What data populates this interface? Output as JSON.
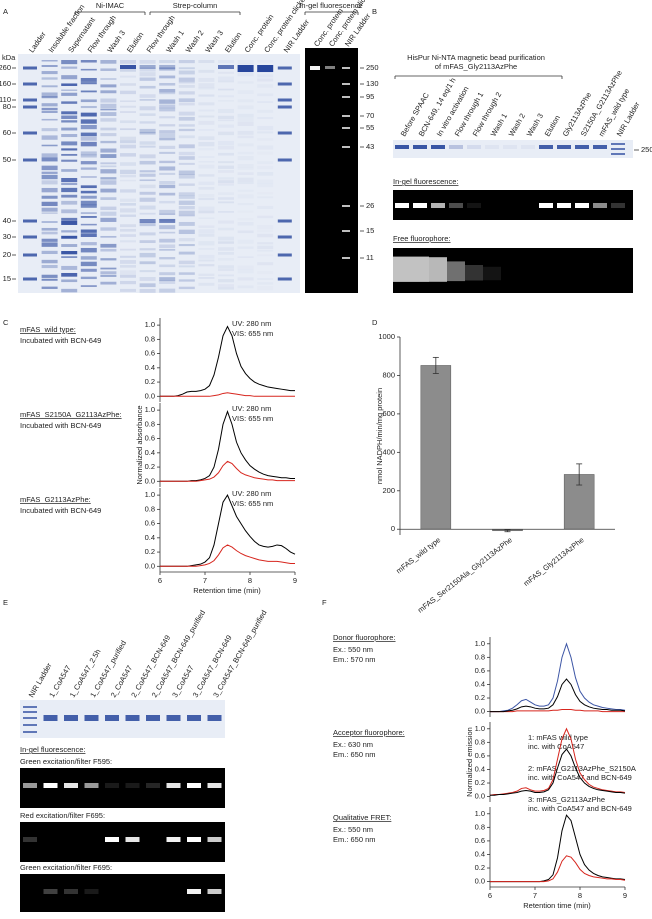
{
  "panel_labels": [
    "A",
    "B",
    "C",
    "D",
    "E",
    "F"
  ],
  "gel_a": {
    "kda_label": "kDa",
    "groups": [
      "Ni-IMAC",
      "Strep-column",
      "In-gel fluorescence"
    ],
    "lanes": [
      "Ladder",
      "Insoluble fraction",
      "Supernatant",
      "Flow through",
      "Wash 3",
      "Elution",
      "Flow through",
      "Wash 1",
      "Wash 2",
      "Wash 3",
      "Elution",
      "Conc. protein",
      "Conc. protein clicked",
      "NIR Ladder"
    ],
    "markers": [
      260,
      160,
      110,
      80,
      60,
      50,
      40,
      30,
      20,
      15
    ],
    "fluor_lanes": [
      "Conc. protein",
      "Conc. protein clicked",
      "NIR Ladder"
    ],
    "fluor_markers": [
      250,
      130,
      95,
      70,
      55,
      43,
      26,
      15,
      11
    ]
  },
  "gel_b": {
    "title_lines": [
      "HisPur Ni-NTA magnetic bead purification",
      "of mFAS_Gly2113AzPhe"
    ],
    "lanes": [
      "Before SPAAC",
      "BCN-649, 14 eq/1 h",
      "In vitro activation",
      "Flow through 1",
      "Flow through 2",
      "Wash 1",
      "Wash 2",
      "Wash 3",
      "Elution",
      "Gly2113AzPhe",
      "S2150A_G2113AzPhe",
      "mFAS_wild type",
      "NIR Ladder"
    ],
    "marker": 250,
    "fluorescence_label": "In-gel fluorescence:",
    "free_label": "Free fluorophore:"
  },
  "gel_e": {
    "lanes": [
      "NIR Ladder",
      "1_CoA547",
      "1_CoA547_2.5h",
      "1_CoA547_purified",
      "2_CoA547",
      "2_CoA547_BCN-649",
      "2_CoA547_BCN-649_purified",
      "3_CoA547",
      "3_CoA547_BCN-649",
      "3_CoA547_BCN-649_purified"
    ],
    "fluorescence_label": "In-gel fluorescence:",
    "sections": [
      "Green excitation/filter F595:",
      "Red excitation/filter F695:",
      "Green excitation/filter F695:"
    ]
  },
  "chart_data": [
    {
      "type": "line",
      "label": "mFAS_wild type:",
      "note": "Incubated with BCN-649",
      "x": [
        6,
        6.1,
        6.2,
        6.3,
        6.4,
        6.5,
        6.6,
        6.7,
        6.8,
        6.9,
        7,
        7.1,
        7.2,
        7.3,
        7.4,
        7.5,
        7.6,
        7.7,
        7.8,
        7.9,
        8,
        8.1,
        8.2,
        8.3,
        8.4,
        8.5,
        8.6,
        8.7,
        8.8,
        8.9,
        9
      ],
      "xlim": [
        6,
        9
      ],
      "ylim": [
        -0.08,
        1.1
      ],
      "yticks": [
        {
          "value": 0,
          "label": "0.0"
        },
        0.2,
        0.4,
        0.6,
        0.8,
        {
          "value": 1,
          "label": "1.0"
        }
      ],
      "series": [
        {
          "name": "UV: 280 nm",
          "color": "#000000",
          "values": [
            0,
            0,
            0,
            0,
            0.01,
            0.03,
            0.06,
            0.07,
            0.07,
            0.08,
            0.1,
            0.15,
            0.3,
            0.55,
            0.85,
            0.98,
            0.85,
            0.6,
            0.42,
            0.32,
            0.25,
            0.2,
            0.17,
            0.15,
            0.13,
            0.12,
            0.11,
            0.1,
            0.09,
            0.08,
            0.08
          ]
        },
        {
          "name": "VIS: 655 nm",
          "color": "#d7261e",
          "values": [
            0,
            0,
            0,
            0,
            0,
            0,
            0,
            0,
            0,
            0,
            0,
            0,
            0.01,
            0.02,
            0.04,
            0.05,
            0.04,
            0.03,
            0.02,
            0.01,
            0.01,
            0,
            0,
            0,
            0,
            0,
            0,
            0,
            0,
            0,
            0
          ]
        }
      ]
    },
    {
      "type": "line",
      "label": "mFAS_S2150A_G2113AzPhe:",
      "note": "Incubated with BCN-649",
      "y_label": "Normalized absorbance",
      "x": [
        6,
        6.1,
        6.2,
        6.3,
        6.4,
        6.5,
        6.6,
        6.7,
        6.8,
        6.9,
        7,
        7.1,
        7.2,
        7.3,
        7.4,
        7.5,
        7.6,
        7.7,
        7.8,
        7.9,
        8,
        8.1,
        8.2,
        8.3,
        8.4,
        8.5,
        8.6,
        8.7,
        8.8,
        8.9,
        9
      ],
      "xlim": [
        6,
        9
      ],
      "ylim": [
        -0.08,
        1.1
      ],
      "yticks": [
        {
          "value": 0,
          "label": "0.0"
        },
        0.2,
        0.4,
        0.6,
        0.8,
        {
          "value": 1,
          "label": "1.0"
        }
      ],
      "series": [
        {
          "name": "UV: 280 nm",
          "color": "#000000",
          "values": [
            0,
            0,
            0,
            0,
            0,
            0,
            0,
            0.01,
            0.01,
            0.02,
            0.04,
            0.08,
            0.2,
            0.45,
            0.8,
            0.98,
            0.8,
            0.55,
            0.4,
            0.3,
            0.22,
            0.17,
            0.13,
            0.1,
            0.08,
            0.07,
            0.06,
            0.05,
            0.05,
            0.04,
            0.04
          ]
        },
        {
          "name": "VIS: 655 nm",
          "color": "#d7261e",
          "values": [
            0,
            0,
            0,
            0,
            0,
            0,
            0,
            0,
            0,
            0.01,
            0.02,
            0.03,
            0.06,
            0.12,
            0.22,
            0.28,
            0.25,
            0.18,
            0.12,
            0.09,
            0.07,
            0.05,
            0.04,
            0.03,
            0.02,
            0.02,
            0.01,
            0.01,
            0.01,
            0.01,
            0.01
          ]
        }
      ]
    },
    {
      "type": "line",
      "label": "mFAS_G2113AzPhe:",
      "note": "Incubated with BCN-649",
      "x_label": "Retention time (min)",
      "x": [
        6,
        6.1,
        6.2,
        6.3,
        6.4,
        6.5,
        6.6,
        6.7,
        6.8,
        6.9,
        7,
        7.1,
        7.2,
        7.3,
        7.4,
        7.5,
        7.6,
        7.7,
        7.8,
        7.9,
        8,
        8.1,
        8.2,
        8.3,
        8.4,
        8.5,
        8.6,
        8.7,
        8.8,
        8.9,
        9
      ],
      "xlim": [
        6,
        9
      ],
      "xticks": [
        6,
        7,
        8,
        9
      ],
      "ylim": [
        -0.08,
        1.1
      ],
      "yticks": [
        {
          "value": 0,
          "label": "0.0"
        },
        0.2,
        0.4,
        0.6,
        0.8,
        {
          "value": 1,
          "label": "1.0"
        }
      ],
      "series": [
        {
          "name": "UV: 280 nm",
          "color": "#000000",
          "values": [
            0,
            0,
            0,
            0,
            0,
            0,
            0,
            0.01,
            0.02,
            0.03,
            0.06,
            0.12,
            0.3,
            0.6,
            0.9,
            1.0,
            0.85,
            0.7,
            0.6,
            0.5,
            0.42,
            0.35,
            0.3,
            0.28,
            0.27,
            0.28,
            0.3,
            0.29,
            0.25,
            0.2,
            0.17
          ]
        },
        {
          "name": "VIS: 655 nm",
          "color": "#d7261e",
          "values": [
            0,
            0,
            0,
            0,
            0,
            0,
            0,
            0,
            0,
            0.01,
            0.02,
            0.04,
            0.08,
            0.16,
            0.26,
            0.3,
            0.27,
            0.22,
            0.18,
            0.15,
            0.13,
            0.11,
            0.09,
            0.08,
            0.07,
            0.07,
            0.07,
            0.06,
            0.05,
            0.04,
            0.04
          ]
        }
      ]
    },
    {
      "type": "bar",
      "y_label": "nmol NADPH/min/mg protein",
      "categories": [
        "mFAS_wild type",
        "mFAS_Ser2150Ala_Gly2113AzPhe",
        "mFAS_Gly2113AzPhe"
      ],
      "values": [
        852,
        -8,
        285
      ],
      "errors": [
        42,
        5,
        55
      ],
      "color": "#8c8c8c",
      "ylim": [
        -30,
        1000
      ],
      "yticks": [
        0,
        200,
        400,
        600,
        800,
        1000
      ]
    },
    {
      "type": "line",
      "label": "Donor fluorophore:",
      "notes": [
        "Ex.: 550 nm",
        "Em.: 570 nm"
      ],
      "x": [
        6,
        6.1,
        6.2,
        6.3,
        6.4,
        6.5,
        6.6,
        6.7,
        6.8,
        6.9,
        7,
        7.1,
        7.2,
        7.3,
        7.4,
        7.5,
        7.6,
        7.7,
        7.8,
        7.9,
        8,
        8.1,
        8.2,
        8.3,
        8.4,
        8.5,
        8.6,
        8.7,
        8.8,
        8.9,
        9
      ],
      "xlim": [
        6,
        9
      ],
      "ylim": [
        -0.08,
        1.1
      ],
      "yticks": [
        {
          "value": 0,
          "label": "0.0"
        },
        0.2,
        0.4,
        0.6,
        0.8,
        {
          "value": 1,
          "label": "1.0"
        }
      ],
      "series": [
        {
          "name": "1: mFAS wild type",
          "detail": "inc. with CoA547",
          "color": "#3c55a5",
          "values": [
            0,
            0,
            0,
            0.01,
            0.02,
            0.05,
            0.1,
            0.16,
            0.18,
            0.14,
            0.1,
            0.08,
            0.08,
            0.1,
            0.2,
            0.45,
            0.8,
            1.0,
            0.8,
            0.5,
            0.3,
            0.2,
            0.14,
            0.1,
            0.08,
            0.06,
            0.05,
            0.04,
            0.03,
            0.03,
            0.02
          ]
        },
        {
          "name": "2: mFAS_G2113AzPhe_S2150A",
          "detail": "inc. with CoA547 and BCN-649",
          "color": "#d7261e",
          "values": [
            0,
            0,
            0,
            0,
            0,
            0,
            0.01,
            0.01,
            0.01,
            0.01,
            0.01,
            0.01,
            0.01,
            0.01,
            0.02,
            0.02,
            0.03,
            0.03,
            0.03,
            0.02,
            0.02,
            0.01,
            0.01,
            0.01,
            0.01,
            0,
            0,
            0,
            0,
            0,
            0
          ]
        },
        {
          "name": "3: mFAS_G2113AzPhe",
          "detail": "inc. with CoA547 and BCN-649",
          "color": "#000000",
          "values": [
            0,
            0,
            0,
            0,
            0.01,
            0.02,
            0.04,
            0.07,
            0.08,
            0.07,
            0.05,
            0.04,
            0.04,
            0.05,
            0.1,
            0.22,
            0.4,
            0.48,
            0.4,
            0.25,
            0.15,
            0.1,
            0.07,
            0.05,
            0.04,
            0.03,
            0.03,
            0.02,
            0.02,
            0.02,
            0.01
          ]
        }
      ]
    },
    {
      "type": "line",
      "label": "Acceptor fluorophore:",
      "notes": [
        "Ex.: 630 nm",
        "Em.: 650 nm"
      ],
      "y_label": "Normalized emission",
      "x": [
        6,
        6.1,
        6.2,
        6.3,
        6.4,
        6.5,
        6.6,
        6.7,
        6.8,
        6.9,
        7,
        7.1,
        7.2,
        7.3,
        7.4,
        7.5,
        7.6,
        7.7,
        7.8,
        7.9,
        8,
        8.1,
        8.2,
        8.3,
        8.4,
        8.5,
        8.6,
        8.7,
        8.8,
        8.9,
        9
      ],
      "xlim": [
        6,
        9
      ],
      "ylim": [
        -0.08,
        1.1
      ],
      "yticks": [
        {
          "value": 0,
          "label": "0.0"
        },
        0.2,
        0.4,
        0.6,
        0.8,
        {
          "value": 1,
          "label": "1.0"
        }
      ],
      "series": [
        {
          "color": "#d7261e",
          "values": [
            0.02,
            0.03,
            0.03,
            0.04,
            0.05,
            0.06,
            0.08,
            0.12,
            0.13,
            0.1,
            0.08,
            0.08,
            0.09,
            0.12,
            0.25,
            0.55,
            0.85,
            1.0,
            0.85,
            0.55,
            0.35,
            0.25,
            0.18,
            0.14,
            0.12,
            0.1,
            0.09,
            0.08,
            0.07,
            0.07,
            0.06
          ]
        },
        {
          "color": "#000000",
          "values": [
            0.02,
            0.02,
            0.03,
            0.03,
            0.04,
            0.05,
            0.06,
            0.08,
            0.09,
            0.08,
            0.06,
            0.06,
            0.07,
            0.1,
            0.2,
            0.42,
            0.62,
            0.7,
            0.6,
            0.42,
            0.28,
            0.2,
            0.15,
            0.12,
            0.1,
            0.09,
            0.08,
            0.07,
            0.06,
            0.06,
            0.05
          ]
        }
      ]
    },
    {
      "type": "line",
      "label": "Qualitative FRET:",
      "notes": [
        "Ex.: 550 nm",
        "Em.: 650 nm"
      ],
      "x_label": "Retention time (min)",
      "x": [
        6,
        6.1,
        6.2,
        6.3,
        6.4,
        6.5,
        6.6,
        6.7,
        6.8,
        6.9,
        7,
        7.1,
        7.2,
        7.3,
        7.4,
        7.5,
        7.6,
        7.7,
        7.8,
        7.9,
        8,
        8.1,
        8.2,
        8.3,
        8.4,
        8.5,
        8.6,
        8.7,
        8.8,
        8.9,
        9
      ],
      "xlim": [
        6,
        9
      ],
      "xticks": [
        6,
        7,
        8,
        9
      ],
      "ylim": [
        -0.08,
        1.1
      ],
      "yticks": [
        {
          "value": 0,
          "label": "0.0"
        },
        0.2,
        0.4,
        0.6,
        0.8,
        {
          "value": 1,
          "label": "1.0"
        }
      ],
      "series": [
        {
          "color": "#000000",
          "values": [
            0,
            0,
            0,
            0,
            0,
            0,
            0,
            0,
            0,
            0,
            0,
            0,
            0.01,
            0.03,
            0.1,
            0.35,
            0.75,
            0.98,
            0.9,
            0.65,
            0.4,
            0.25,
            0.17,
            0.12,
            0.09,
            0.07,
            0.06,
            0.05,
            0.04,
            0.04,
            0.03
          ]
        },
        {
          "color": "#d7261e",
          "values": [
            0,
            0,
            0,
            0,
            0,
            0,
            0,
            0,
            0,
            0,
            0,
            0,
            0,
            0.01,
            0.04,
            0.14,
            0.3,
            0.38,
            0.36,
            0.28,
            0.18,
            0.12,
            0.09,
            0.07,
            0.06,
            0.05,
            0.04,
            0.04,
            0.03,
            0.03,
            0.02
          ]
        }
      ]
    }
  ]
}
